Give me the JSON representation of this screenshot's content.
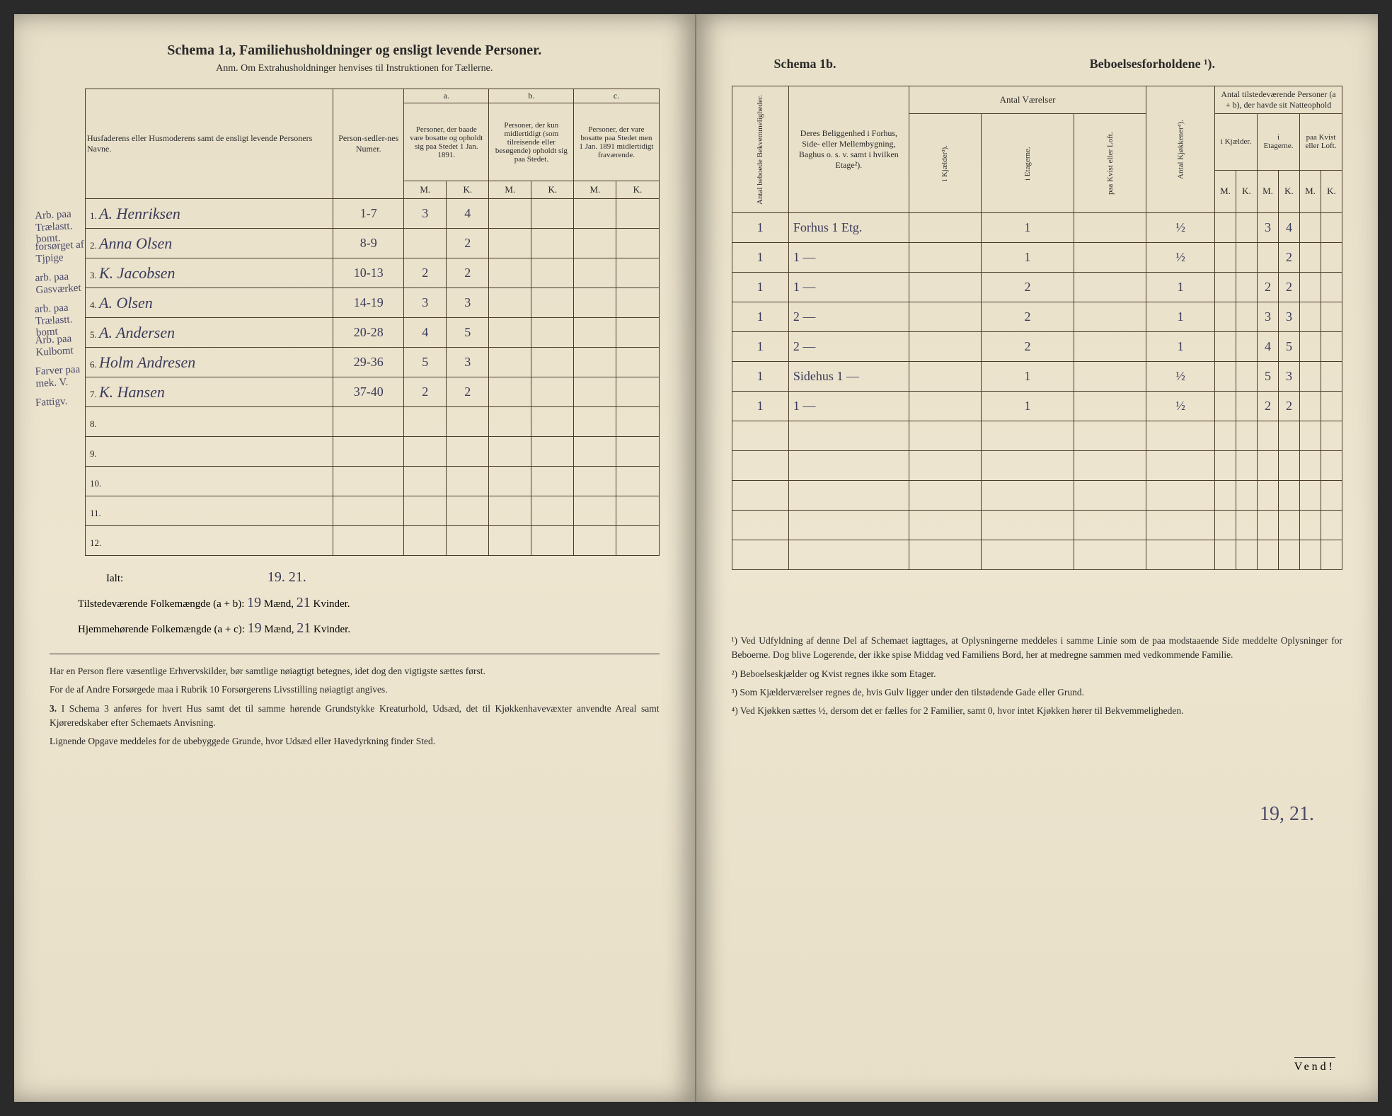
{
  "left": {
    "title": "Schema 1a,  Familiehusholdninger og ensligt levende Personer.",
    "subtitle": "Anm. Om Extrahusholdninger henvises til Instruktionen for Tællerne.",
    "head": {
      "names": "Husfaderens eller Husmoderens samt de ensligt levende Personers Navne.",
      "numer": "Person-sedler-nes Numer.",
      "a_label": "a.",
      "b_label": "b.",
      "c_label": "c.",
      "a_text": "Personer, der baade vare bosatte og opholdt sig paa Stedet 1 Jan. 1891.",
      "b_text": "Personer, der kun midlertidigt (som tilreisende eller besøgende) opholdt sig paa Stedet.",
      "c_text": "Personer, der vare bosatte paa Stedet men 1 Jan. 1891 midlertidigt fraværende.",
      "m": "M.",
      "k": "K."
    },
    "margin_notes": [
      "Arb. paa Trælastt. bomt.",
      "forsørget af Tjpige",
      "arb. paa Gasværket",
      "arb. paa Trælastt. bomt",
      "Arb. paa Kulbomt",
      "Farver paa mek. V.",
      "Fattigv."
    ],
    "rows": [
      {
        "n": "1.",
        "name": "A. Henriksen",
        "num": "1-7",
        "am": "3",
        "ak": "4"
      },
      {
        "n": "2.",
        "name": "Anna Olsen",
        "num": "8-9",
        "am": "",
        "ak": "2"
      },
      {
        "n": "3.",
        "name": "K. Jacobsen",
        "num": "10-13",
        "am": "2",
        "ak": "2"
      },
      {
        "n": "4.",
        "name": "A. Olsen",
        "num": "14-19",
        "am": "3",
        "ak": "3"
      },
      {
        "n": "5.",
        "name": "A. Andersen",
        "num": "20-28",
        "am": "4",
        "ak": "5"
      },
      {
        "n": "6.",
        "name": "Holm Andresen",
        "num": "29-36",
        "am": "5",
        "ak": "3"
      },
      {
        "n": "7.",
        "name": "K. Hansen",
        "num": "37-40",
        "am": "2",
        "ak": "2"
      },
      {
        "n": "8.",
        "name": "",
        "num": "",
        "am": "",
        "ak": ""
      },
      {
        "n": "9.",
        "name": "",
        "num": "",
        "am": "",
        "ak": ""
      },
      {
        "n": "10.",
        "name": "",
        "num": "",
        "am": "",
        "ak": ""
      },
      {
        "n": "11.",
        "name": "",
        "num": "",
        "am": "",
        "ak": ""
      },
      {
        "n": "12.",
        "name": "",
        "num": "",
        "am": "",
        "ak": ""
      }
    ],
    "ialt": "Ialt:",
    "ialt_vals": "19. 21.",
    "tot1_label": "Tilstedeværende Folkemængde (a + b): ",
    "tot1_m": "19",
    "tot1_mid": " Mænd, ",
    "tot1_k": "21",
    "tot1_end": " Kvinder.",
    "tot2_label": "Hjemmehørende Folkemængde (a + c): ",
    "tot2_m": "19",
    "tot2_k": "21",
    "fn1": "Har en Person flere væsentlige Erhvervskilder, bør samtlige nøiagtigt betegnes, idet dog den vigtigste sættes først.",
    "fn2": "For de af Andre Forsørgede maa i Rubrik 10 Forsørgerens Livsstilling nøiagtigt angives.",
    "fn3_lead": "3. ",
    "fn3": "I Schema 3 anføres for hvert Hus samt det til samme hørende Grundstykke Kreaturhold, Udsæd, det til Kjøkkenhavevæxter anvendte Areal samt Kjøreredskaber efter Schemaets Anvisning.",
    "fn4": "Lignende Opgave meddeles for de ubebyggede Grunde, hvor Udsæd eller Havedyrkning finder Sted."
  },
  "right": {
    "title_a": "Schema 1b.",
    "title_b": "Beboelsesforholdene ¹).",
    "head": {
      "bekv": "Antal beboede Bekvemmeligheder.",
      "belig": "Deres Beliggenhed i Forhus, Side- eller Mellembygning, Baghus o. s. v. samt i hvilken Etage²).",
      "vaer": "Antal Værelser",
      "kjok": "Antal Kjøkkener⁴).",
      "persons": "Antal tilstedeværende Personer (a + b), der havde sit Natteophold",
      "kjael": "i Kjælder³).",
      "etag": "i Etagerne.",
      "loft": "paa Kvist eller Loft.",
      "kjael2": "i Kjælder.",
      "etag2": "i Etagerne.",
      "loft2": "paa Kvist eller Loft.",
      "m": "M.",
      "k": "K."
    },
    "rows": [
      {
        "a": "1",
        "b": "Forhus 1 Etg.",
        "k": "",
        "e": "1",
        "l": "",
        "kk": "½",
        "km": "",
        "kkk": "",
        "em": "3",
        "ek": "4",
        "lm": "",
        "lk": ""
      },
      {
        "a": "1",
        "b": "1 —",
        "k": "",
        "e": "1",
        "l": "",
        "kk": "½",
        "km": "",
        "kkk": "",
        "em": "",
        "ek": "2",
        "lm": "",
        "lk": ""
      },
      {
        "a": "1",
        "b": "1 —",
        "k": "",
        "e": "2",
        "l": "",
        "kk": "1",
        "km": "",
        "kkk": "",
        "em": "2",
        "ek": "2",
        "lm": "",
        "lk": ""
      },
      {
        "a": "1",
        "b": "2 —",
        "k": "",
        "e": "2",
        "l": "",
        "kk": "1",
        "km": "",
        "kkk": "",
        "em": "3",
        "ek": "3",
        "lm": "",
        "lk": ""
      },
      {
        "a": "1",
        "b": "2 —",
        "k": "",
        "e": "2",
        "l": "",
        "kk": "1",
        "km": "",
        "kkk": "",
        "em": "4",
        "ek": "5",
        "lm": "",
        "lk": ""
      },
      {
        "a": "1",
        "b": "Sidehus 1 —",
        "k": "",
        "e": "1",
        "l": "",
        "kk": "½",
        "km": "",
        "kkk": "",
        "em": "5",
        "ek": "3",
        "lm": "",
        "lk": ""
      },
      {
        "a": "1",
        "b": "1 —",
        "k": "",
        "e": "1",
        "l": "",
        "kk": "½",
        "km": "",
        "kkk": "",
        "em": "2",
        "ek": "2",
        "lm": "",
        "lk": ""
      },
      {
        "a": "",
        "b": "",
        "k": "",
        "e": "",
        "l": "",
        "kk": "",
        "km": "",
        "kkk": "",
        "em": "",
        "ek": "",
        "lm": "",
        "lk": ""
      },
      {
        "a": "",
        "b": "",
        "k": "",
        "e": "",
        "l": "",
        "kk": "",
        "km": "",
        "kkk": "",
        "em": "",
        "ek": "",
        "lm": "",
        "lk": ""
      },
      {
        "a": "",
        "b": "",
        "k": "",
        "e": "",
        "l": "",
        "kk": "",
        "km": "",
        "kkk": "",
        "em": "",
        "ek": "",
        "lm": "",
        "lk": ""
      },
      {
        "a": "",
        "b": "",
        "k": "",
        "e": "",
        "l": "",
        "kk": "",
        "km": "",
        "kkk": "",
        "em": "",
        "ek": "",
        "lm": "",
        "lk": ""
      },
      {
        "a": "",
        "b": "",
        "k": "",
        "e": "",
        "l": "",
        "kk": "",
        "km": "",
        "kkk": "",
        "em": "",
        "ek": "",
        "lm": "",
        "lk": ""
      }
    ],
    "hand_total": "19, 21.",
    "fn1": "¹) Ved Udfyldning af denne Del af Schemaet iagttages, at Oplysningerne meddeles i samme Linie som de paa modstaaende Side meddelte Oplysninger for Beboerne. Dog blive Logerende, der ikke spise Middag ved Familiens Bord, her at medregne sammen med vedkommende Familie.",
    "fn2": "²) Beboelseskjælder og Kvist regnes ikke som Etager.",
    "fn3": "³) Som Kjælderværelser regnes de, hvis Gulv ligger under den tilstødende Gade eller Grund.",
    "fn4": "⁴) Ved Kjøkken sættes ½, dersom det er fælles for 2 Familier, samt 0, hvor intet Kjøkken hører til Bekvemmeligheden.",
    "vendi": "Vend!"
  }
}
